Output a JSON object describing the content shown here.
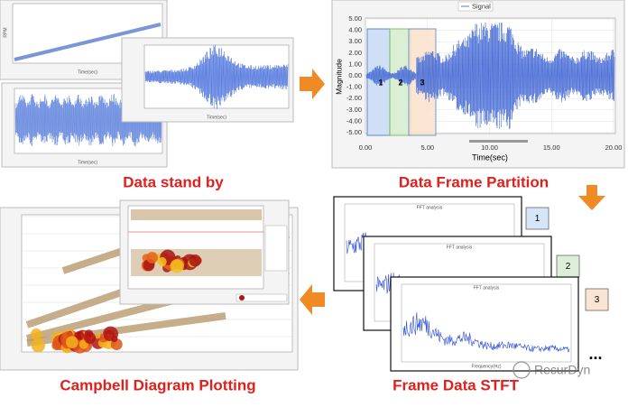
{
  "panels": [
    {
      "caption": "Data stand by"
    },
    {
      "caption": "Data Frame Partition"
    },
    {
      "caption": "Frame Data STFT"
    },
    {
      "caption": "Campbell Diagram Plotting"
    }
  ],
  "signal_chart": {
    "legend": "Signal",
    "y_label": "Magnitude",
    "x_label": "Time(sec)",
    "y_ticks": [
      "5.00",
      "4.00",
      "3.00",
      "2.00",
      "1.00",
      "0.00",
      "-1.00",
      "-2.00",
      "-3.00",
      "-4.00",
      "-5.00"
    ],
    "x_ticks": [
      "0.00",
      "5.00",
      "10.00",
      "15.00",
      "20.00"
    ],
    "frames": [
      "1",
      "2",
      "3"
    ]
  },
  "thumbnails": {
    "x_label": "Time(sec)",
    "rpm_label": "RPM",
    "fft_title": "FFT analysis",
    "freq_label": "Frequency(Hz)"
  },
  "stft_frames": [
    "1",
    "2",
    "3"
  ],
  "ellipsis": "...",
  "watermark": "RecurDyn"
}
